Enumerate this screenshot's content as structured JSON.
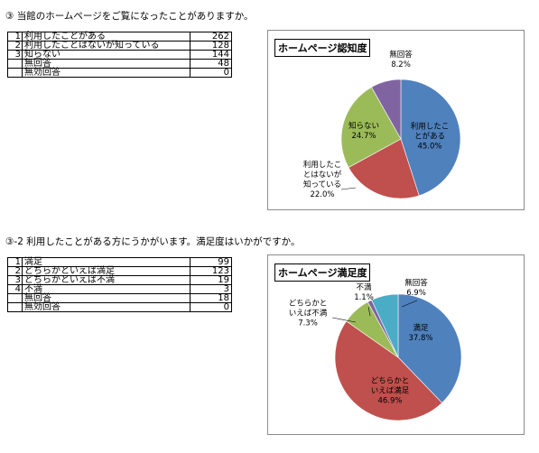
{
  "q1": {
    "heading": "③ 当館のホームページをご覧になったことがありますか。",
    "rows": [
      {
        "no": "1",
        "label": "利用したことがある",
        "count": "262"
      },
      {
        "no": "2",
        "label": "利用したことはないが知っている",
        "count": "128"
      },
      {
        "no": "3",
        "label": "知らない",
        "count": "144"
      },
      {
        "no": "",
        "label": "無回答",
        "count": "48"
      },
      {
        "no": "",
        "label": "無効回答",
        "count": "0"
      }
    ]
  },
  "q2": {
    "heading": "③-2 利用したことがある方にうかがいます。満足度はいかがですか。",
    "rows": [
      {
        "no": "1",
        "label": "満足",
        "count": "99"
      },
      {
        "no": "2",
        "label": "どちらかといえば満足",
        "count": "123"
      },
      {
        "no": "3",
        "label": "どちらかといえば不満",
        "count": "19"
      },
      {
        "no": "4",
        "label": "不満",
        "count": "3"
      },
      {
        "no": "",
        "label": "無回答",
        "count": "18"
      },
      {
        "no": "",
        "label": "無効回答",
        "count": "0"
      }
    ]
  },
  "chart_data": [
    {
      "type": "pie",
      "title": "ホームページ認知度",
      "categories": [
        "利用したことがある",
        "利用したことはないが知っている",
        "知らない",
        "無回答"
      ],
      "values": [
        45.0,
        22.0,
        24.7,
        8.2
      ],
      "labels": [
        {
          "text": "利用したこ\nとがある",
          "pct": "45.0%"
        },
        {
          "text": "利用したこ\nとはないが\n知っている",
          "pct": "22.0%"
        },
        {
          "text": "知らない",
          "pct": "24.7%"
        },
        {
          "text": "無回答",
          "pct": "8.2%"
        }
      ],
      "colors": [
        "#4f81bd",
        "#c0504d",
        "#9bbb59",
        "#8064a2"
      ]
    },
    {
      "type": "pie",
      "title": "ホームページ満足度",
      "categories": [
        "満足",
        "どちらかといえば満足",
        "どちらかといえば不満",
        "不満",
        "無回答"
      ],
      "values": [
        37.8,
        46.9,
        7.3,
        1.1,
        6.9
      ],
      "labels": [
        {
          "text": "満足",
          "pct": "37.8%"
        },
        {
          "text": "どちらかと\nいえば満足",
          "pct": "46.9%"
        },
        {
          "text": "どちらかと\nいえば不満",
          "pct": "7.3%"
        },
        {
          "text": "不満",
          "pct": "1.1%"
        },
        {
          "text": "無回答",
          "pct": "6.9%"
        }
      ],
      "colors": [
        "#4f81bd",
        "#c0504d",
        "#9bbb59",
        "#8064a2",
        "#4bacc6"
      ]
    }
  ]
}
